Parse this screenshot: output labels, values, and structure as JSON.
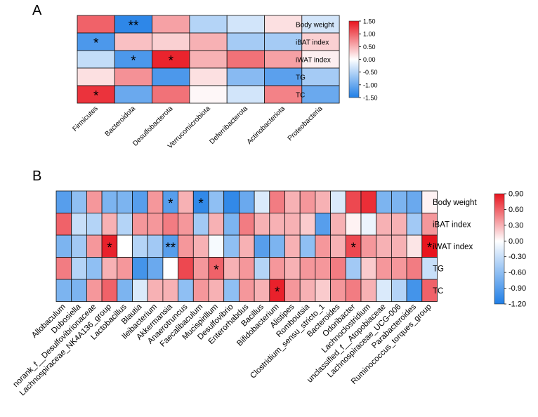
{
  "chart_data": [
    {
      "panel_label": "A",
      "type": "heatmap",
      "rows": [
        "Body weight",
        "iBAT index",
        "iWAT index",
        "TG",
        "TC"
      ],
      "columns": [
        "Firmicutes",
        "Bacteroidota",
        "Desulfobacterota",
        "Verrucomicrobiota",
        "Deferribacterota",
        "Actinobacteriota",
        "Proteobacteria"
      ],
      "values": [
        [
          1.0,
          -1.4,
          0.6,
          -0.5,
          -0.3,
          0.2,
          -0.3
        ],
        [
          -1.2,
          0.4,
          0.3,
          0.5,
          -0.6,
          -0.6,
          0.3
        ],
        [
          -0.4,
          -1.2,
          1.4,
          0.5,
          0.9,
          0.6,
          0.1
        ],
        [
          0.2,
          0.7,
          -1.2,
          0.2,
          -0.8,
          -1.1,
          -0.6
        ],
        [
          1.3,
          -1.0,
          0.9,
          0.05,
          -0.3,
          0.8,
          -1.0
        ]
      ],
      "significance": [
        [
          "",
          "**",
          "",
          "",
          "",
          "",
          ""
        ],
        [
          "*",
          "",
          "",
          "",
          "",
          "",
          ""
        ],
        [
          "",
          "*",
          "*",
          "",
          "",
          "",
          ""
        ],
        [
          "",
          "",
          "",
          "",
          "",
          "",
          ""
        ],
        [
          "*",
          "",
          "",
          "",
          "",
          "",
          ""
        ]
      ],
      "color_range": [
        -1.5,
        1.5
      ],
      "colorbar_ticks": [
        "1.50",
        "1.00",
        "0.50",
        "0.00",
        "-0.50",
        "-1.00",
        "-1.50"
      ],
      "colors": {
        "low": "#1f7ee6",
        "mid": "#ffffff",
        "high": "#e8141e"
      }
    },
    {
      "panel_label": "B",
      "type": "heatmap",
      "rows": [
        "Body weight",
        "iBAT index",
        "iWAT index",
        "TG",
        "TC"
      ],
      "columns": [
        "Allobaculum",
        "Dubosiella",
        "norank_f__Desulfovibrionaceae",
        "Lachnospiraceae_NK4A136_group",
        "Lactobacillus",
        "Blautia",
        "Ileibacterium",
        "Akkermansia",
        "Anaerotruncus",
        "Faecalibaculum",
        "Mucispirillum",
        "Desulfovibrio",
        "Enterorhabdus",
        "Bacillus",
        "Bifidobacterium",
        "Alistipes",
        "Romboutsia",
        "Clostridium_sensu_stricto_1",
        "Bacteroides",
        "Odoribacter",
        "Lachnoclostridium",
        "unclassified_f__Atopobiaceae",
        "Lachnospiraceae_UCG-006",
        "Parabacteroides",
        "Ruminococcus_torques_group"
      ],
      "values": [
        [
          -0.9,
          -0.6,
          0.4,
          -0.7,
          -0.7,
          -0.9,
          0.4,
          -0.9,
          0.3,
          -1.1,
          -0.6,
          -1.1,
          -0.8,
          -0.2,
          0.5,
          0.3,
          0.4,
          0.3,
          -0.2,
          0.7,
          0.8,
          -0.7,
          -0.7,
          -0.8,
          0.05
        ],
        [
          0.6,
          -0.3,
          -0.4,
          0.3,
          -0.4,
          0.4,
          0.4,
          0.5,
          0.4,
          -0.5,
          0.3,
          -0.7,
          0.5,
          0.3,
          0.3,
          0.3,
          0.2,
          -0.9,
          0.3,
          0.05,
          -0.1,
          0.3,
          0.3,
          -0.5,
          0.4
        ],
        [
          -0.7,
          -0.5,
          0.4,
          0.85,
          0.0,
          -0.4,
          -0.5,
          -0.9,
          0.4,
          0.3,
          -0.05,
          -0.6,
          0.3,
          -0.9,
          -0.7,
          0.3,
          -0.6,
          0.4,
          0.3,
          0.7,
          0.4,
          0.3,
          0.3,
          0.1,
          0.9
        ],
        [
          0.5,
          -0.4,
          -0.6,
          0.3,
          0.4,
          -1.0,
          -0.8,
          0.0,
          0.7,
          0.4,
          0.6,
          0.3,
          0.4,
          -0.4,
          0.4,
          0.3,
          0.4,
          0.4,
          0.5,
          -0.5,
          0.2,
          0.4,
          0.4,
          0.5,
          -0.3
        ],
        [
          -0.7,
          -0.7,
          0.4,
          0.6,
          -0.7,
          -0.2,
          0.3,
          0.3,
          -0.6,
          0.4,
          0.3,
          -0.6,
          0.4,
          0.3,
          0.85,
          0.4,
          0.3,
          0.2,
          0.4,
          0.5,
          0.3,
          -0.2,
          -0.4,
          -1.0,
          0.6
        ]
      ],
      "significance": [
        [
          "",
          "",
          "",
          "",
          "",
          "",
          "",
          "*",
          "",
          "*",
          "",
          "",
          "",
          "",
          "",
          "",
          "",
          "",
          "",
          "",
          "",
          "",
          "",
          "",
          ""
        ],
        [
          "",
          "",
          "",
          "",
          "",
          "",
          "",
          "",
          "",
          "",
          "",
          "",
          "",
          "",
          "",
          "",
          "",
          "",
          "",
          "",
          "",
          "",
          "",
          "",
          ""
        ],
        [
          "",
          "",
          "",
          "*",
          "",
          "",
          "",
          "**",
          "",
          "",
          "",
          "",
          "",
          "",
          "",
          "",
          "",
          "",
          "",
          "*",
          "",
          "",
          "",
          "",
          "*"
        ],
        [
          "",
          "",
          "",
          "",
          "",
          "",
          "",
          "",
          "",
          "",
          "*",
          "",
          "",
          "",
          "",
          "",
          "",
          "",
          "",
          "",
          "",
          "",
          "",
          "",
          ""
        ],
        [
          "",
          "",
          "",
          "",
          "",
          "",
          "",
          "",
          "",
          "",
          "",
          "",
          "",
          "",
          "*",
          "",
          "",
          "",
          "",
          "",
          "",
          "",
          "",
          "",
          ""
        ]
      ],
      "color_range": [
        -1.2,
        0.9
      ],
      "colorbar_ticks": [
        "0.90",
        "0.60",
        "0.30",
        "0.00",
        "-0.30",
        "-0.60",
        "-0.90",
        "-1.20"
      ],
      "colors": {
        "low": "#1f7ee6",
        "mid": "#ffffff",
        "high": "#e8141e"
      }
    }
  ]
}
